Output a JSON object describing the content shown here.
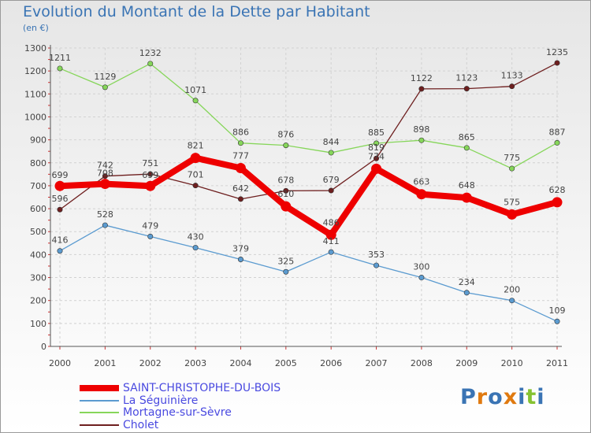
{
  "chart_data": {
    "type": "line",
    "title": "Evolution du Montant de la Dette par Habitant",
    "subtitle": "(en €)",
    "xlabel": "",
    "ylabel": "",
    "categories": [
      "2000",
      "2001",
      "2002",
      "2003",
      "2004",
      "2005",
      "2006",
      "2007",
      "2008",
      "2009",
      "2010",
      "2011"
    ],
    "ylim": [
      0,
      1300
    ],
    "yticks": [
      0,
      100,
      200,
      300,
      400,
      500,
      600,
      700,
      800,
      900,
      1000,
      1100,
      1200,
      1300
    ],
    "grid": true,
    "series": [
      {
        "name": "SAINT-CHRISTOPHE-DU-BOIS",
        "color": "#ee0000",
        "values": [
          699,
          708,
          699,
          821,
          777,
          610,
          486,
          774,
          663,
          648,
          575,
          628
        ]
      },
      {
        "name": "La Séguinière",
        "color": "#5b9bd0",
        "values": [
          416,
          528,
          479,
          430,
          379,
          325,
          411,
          353,
          300,
          234,
          200,
          109
        ]
      },
      {
        "name": "Mortagne-sur-Sèvre",
        "color": "#86d65a",
        "values": [
          1211,
          1129,
          1232,
          1071,
          886,
          876,
          844,
          885,
          898,
          865,
          775,
          887
        ]
      },
      {
        "name": "Cholet",
        "color": "#6e1f1f",
        "values": [
          596,
          742,
          751,
          701,
          642,
          678,
          679,
          819,
          1122,
          1123,
          1133,
          1235
        ]
      }
    ]
  },
  "logo": {
    "letters": [
      "P",
      "r",
      "o",
      "x",
      "i",
      "t",
      "i"
    ],
    "colors": [
      "#3a74b4",
      "#e07a10",
      "#3a74b4",
      "#e07a10",
      "#3a74b4",
      "#86c232",
      "#3a74b4"
    ]
  }
}
